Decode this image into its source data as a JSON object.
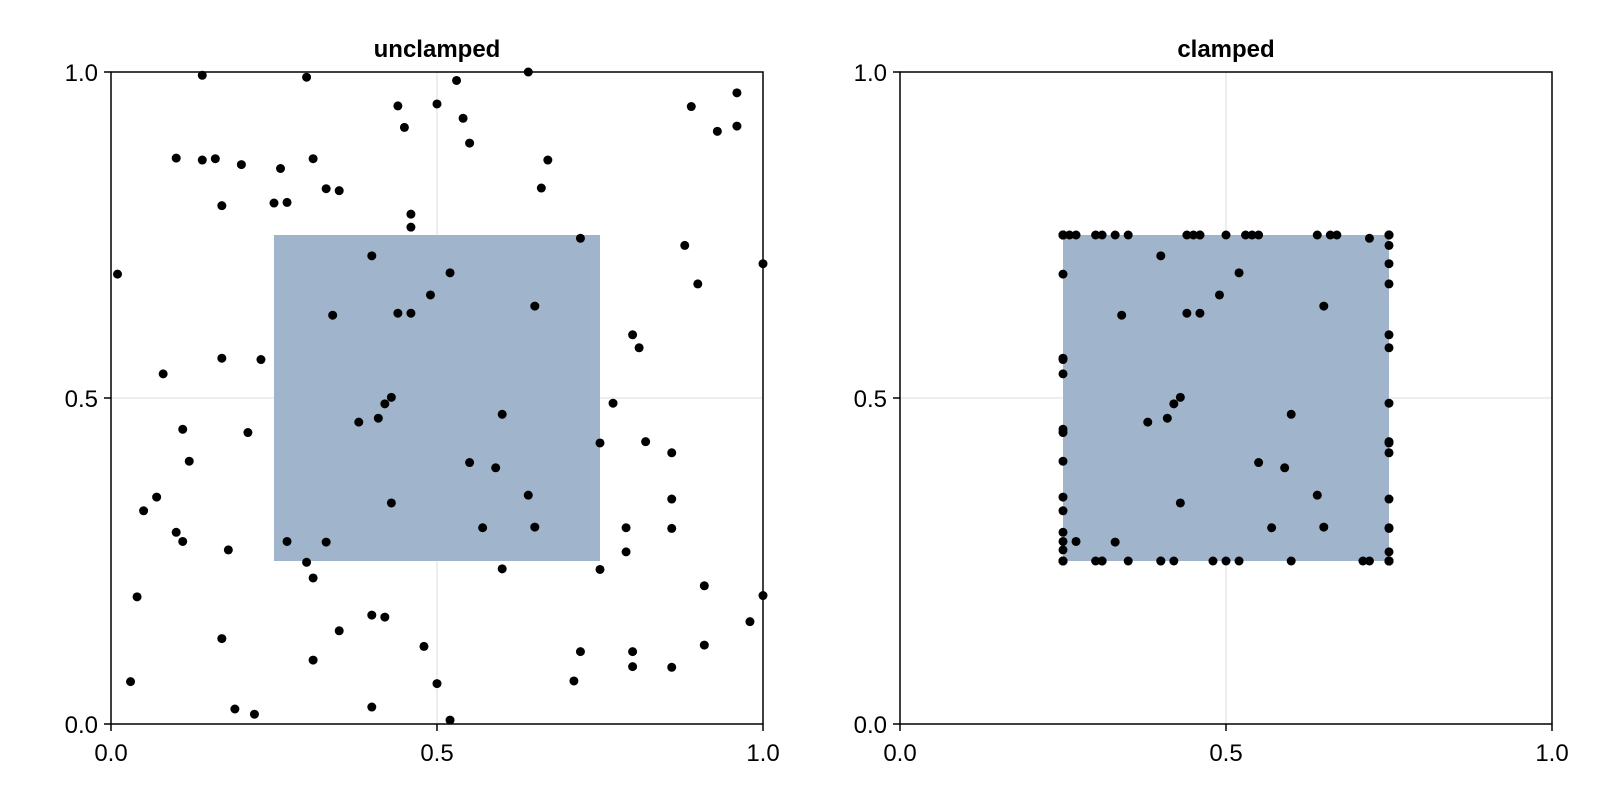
{
  "colors": {
    "rect_fill": "#a0b5cb",
    "point": "#000000",
    "grid": "#dcdcdc",
    "axis": "#000000"
  },
  "chart_data": [
    {
      "type": "scatter",
      "title": "unclamped",
      "xlim": [
        0.0,
        1.0
      ],
      "ylim": [
        0.0,
        1.0
      ],
      "xticks": [
        "0.0",
        "0.5",
        "1.0"
      ],
      "yticks": [
        "0.0",
        "0.5",
        "1.0"
      ],
      "grid": true,
      "rect": {
        "x0": 0.25,
        "y0": 0.25,
        "x1": 0.75,
        "y1": 0.75
      },
      "points": [
        [
          0.14,
          0.995
        ],
        [
          0.3,
          0.992
        ],
        [
          0.53,
          0.987
        ],
        [
          0.64,
          1.0
        ],
        [
          0.96,
          0.968
        ],
        [
          0.44,
          0.948
        ],
        [
          0.5,
          0.951
        ],
        [
          0.54,
          0.929
        ],
        [
          0.89,
          0.947
        ],
        [
          0.96,
          0.917
        ],
        [
          0.93,
          0.909
        ],
        [
          0.45,
          0.915
        ],
        [
          0.55,
          0.891
        ],
        [
          0.1,
          0.868
        ],
        [
          0.14,
          0.865
        ],
        [
          0.16,
          0.867
        ],
        [
          0.31,
          0.867
        ],
        [
          0.67,
          0.865
        ],
        [
          0.2,
          0.858
        ],
        [
          0.26,
          0.852
        ],
        [
          0.66,
          0.822
        ],
        [
          0.33,
          0.821
        ],
        [
          0.35,
          0.818
        ],
        [
          0.25,
          0.799
        ],
        [
          0.27,
          0.8
        ],
        [
          0.17,
          0.795
        ],
        [
          0.46,
          0.782
        ],
        [
          0.46,
          0.762
        ],
        [
          0.72,
          0.745
        ],
        [
          0.88,
          0.734
        ],
        [
          0.4,
          0.718
        ],
        [
          0.01,
          0.69
        ],
        [
          0.52,
          0.692
        ],
        [
          1.0,
          0.706
        ],
        [
          0.9,
          0.675
        ],
        [
          0.49,
          0.658
        ],
        [
          0.65,
          0.641
        ],
        [
          0.34,
          0.627
        ],
        [
          0.44,
          0.63
        ],
        [
          0.46,
          0.63
        ],
        [
          0.8,
          0.597
        ],
        [
          0.81,
          0.577
        ],
        [
          0.17,
          0.561
        ],
        [
          0.23,
          0.559
        ],
        [
          0.08,
          0.537
        ],
        [
          0.43,
          0.501
        ],
        [
          0.42,
          0.491
        ],
        [
          0.77,
          0.492
        ],
        [
          0.6,
          0.475
        ],
        [
          0.41,
          0.469
        ],
        [
          0.38,
          0.463
        ],
        [
          0.11,
          0.452
        ],
        [
          0.21,
          0.447
        ],
        [
          0.82,
          0.433
        ],
        [
          0.75,
          0.431
        ],
        [
          0.86,
          0.416
        ],
        [
          0.12,
          0.403
        ],
        [
          0.55,
          0.401
        ],
        [
          0.59,
          0.393
        ],
        [
          0.07,
          0.348
        ],
        [
          0.64,
          0.351
        ],
        [
          0.86,
          0.345
        ],
        [
          0.43,
          0.339
        ],
        [
          0.05,
          0.327
        ],
        [
          0.57,
          0.301
        ],
        [
          0.65,
          0.302
        ],
        [
          0.79,
          0.301
        ],
        [
          0.86,
          0.3
        ],
        [
          0.1,
          0.294
        ],
        [
          0.11,
          0.28
        ],
        [
          0.27,
          0.28
        ],
        [
          0.33,
          0.279
        ],
        [
          0.18,
          0.267
        ],
        [
          0.79,
          0.264
        ],
        [
          0.3,
          0.248
        ],
        [
          0.75,
          0.237
        ],
        [
          0.6,
          0.238
        ],
        [
          0.31,
          0.224
        ],
        [
          0.91,
          0.212
        ],
        [
          0.04,
          0.195
        ],
        [
          1.0,
          0.197
        ],
        [
          0.4,
          0.167
        ],
        [
          0.42,
          0.164
        ],
        [
          0.98,
          0.157
        ],
        [
          0.35,
          0.143
        ],
        [
          0.17,
          0.131
        ],
        [
          0.48,
          0.119
        ],
        [
          0.91,
          0.121
        ],
        [
          0.72,
          0.111
        ],
        [
          0.8,
          0.111
        ],
        [
          0.31,
          0.098
        ],
        [
          0.8,
          0.088
        ],
        [
          0.86,
          0.087
        ],
        [
          0.03,
          0.065
        ],
        [
          0.71,
          0.066
        ],
        [
          0.5,
          0.062
        ],
        [
          0.19,
          0.023
        ],
        [
          0.4,
          0.026
        ],
        [
          0.22,
          0.015
        ],
        [
          0.52,
          0.006
        ]
      ]
    },
    {
      "type": "scatter",
      "title": "clamped",
      "xlim": [
        0.0,
        1.0
      ],
      "ylim": [
        0.0,
        1.0
      ],
      "xticks": [
        "0.0",
        "0.5",
        "1.0"
      ],
      "yticks": [
        "0.0",
        "0.5",
        "1.0"
      ],
      "grid": true,
      "rect": {
        "x0": 0.25,
        "y0": 0.25,
        "x1": 0.75,
        "y1": 0.75
      },
      "clamp": [
        0.25,
        0.75
      ]
    }
  ]
}
